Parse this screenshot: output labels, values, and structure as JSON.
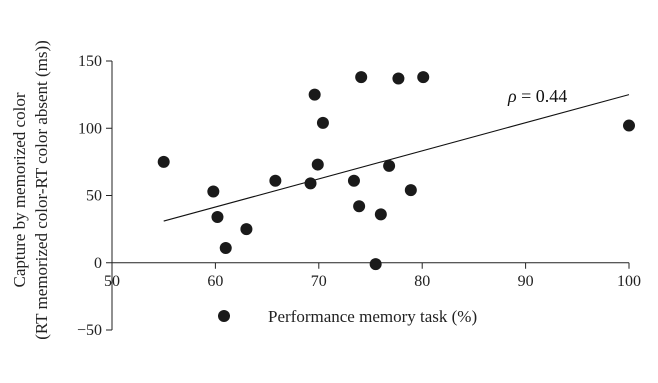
{
  "chart_data": {
    "type": "scatter",
    "title": "",
    "ylabel_lines": [
      "Capture by memorized color",
      "(RT memorized color-RT color absent (ms))"
    ],
    "xlabel": "",
    "xlim": [
      50,
      100
    ],
    "ylim": [
      -50,
      150
    ],
    "x_ticks": [
      50,
      60,
      70,
      80,
      90,
      100
    ],
    "y_ticks": [
      -50,
      0,
      50,
      100,
      150
    ],
    "grid": false,
    "legend": {
      "label": "Performance memory task (%)",
      "placement": "bottom-center"
    },
    "annotation": {
      "symbol": "ρ",
      "rest": " = 0.44"
    },
    "trendline": {
      "x": [
        55,
        100
      ],
      "y": [
        31,
        125
      ]
    },
    "points": [
      {
        "x": 55,
        "y": 75
      },
      {
        "x": 59.8,
        "y": 53
      },
      {
        "x": 60.2,
        "y": 34
      },
      {
        "x": 61,
        "y": 11
      },
      {
        "x": 63,
        "y": 25
      },
      {
        "x": 65.8,
        "y": 61
      },
      {
        "x": 69.2,
        "y": 59
      },
      {
        "x": 69.6,
        "y": 125
      },
      {
        "x": 69.9,
        "y": 73
      },
      {
        "x": 70.4,
        "y": 104
      },
      {
        "x": 73.4,
        "y": 61
      },
      {
        "x": 73.9,
        "y": 42
      },
      {
        "x": 74.1,
        "y": 138
      },
      {
        "x": 75.5,
        "y": -1
      },
      {
        "x": 76,
        "y": 36
      },
      {
        "x": 76.8,
        "y": 72
      },
      {
        "x": 77.7,
        "y": 137
      },
      {
        "x": 78.9,
        "y": 54
      },
      {
        "x": 80.1,
        "y": 138
      },
      {
        "x": 100,
        "y": 102
      }
    ],
    "marker_color": "#1a1a1a"
  }
}
